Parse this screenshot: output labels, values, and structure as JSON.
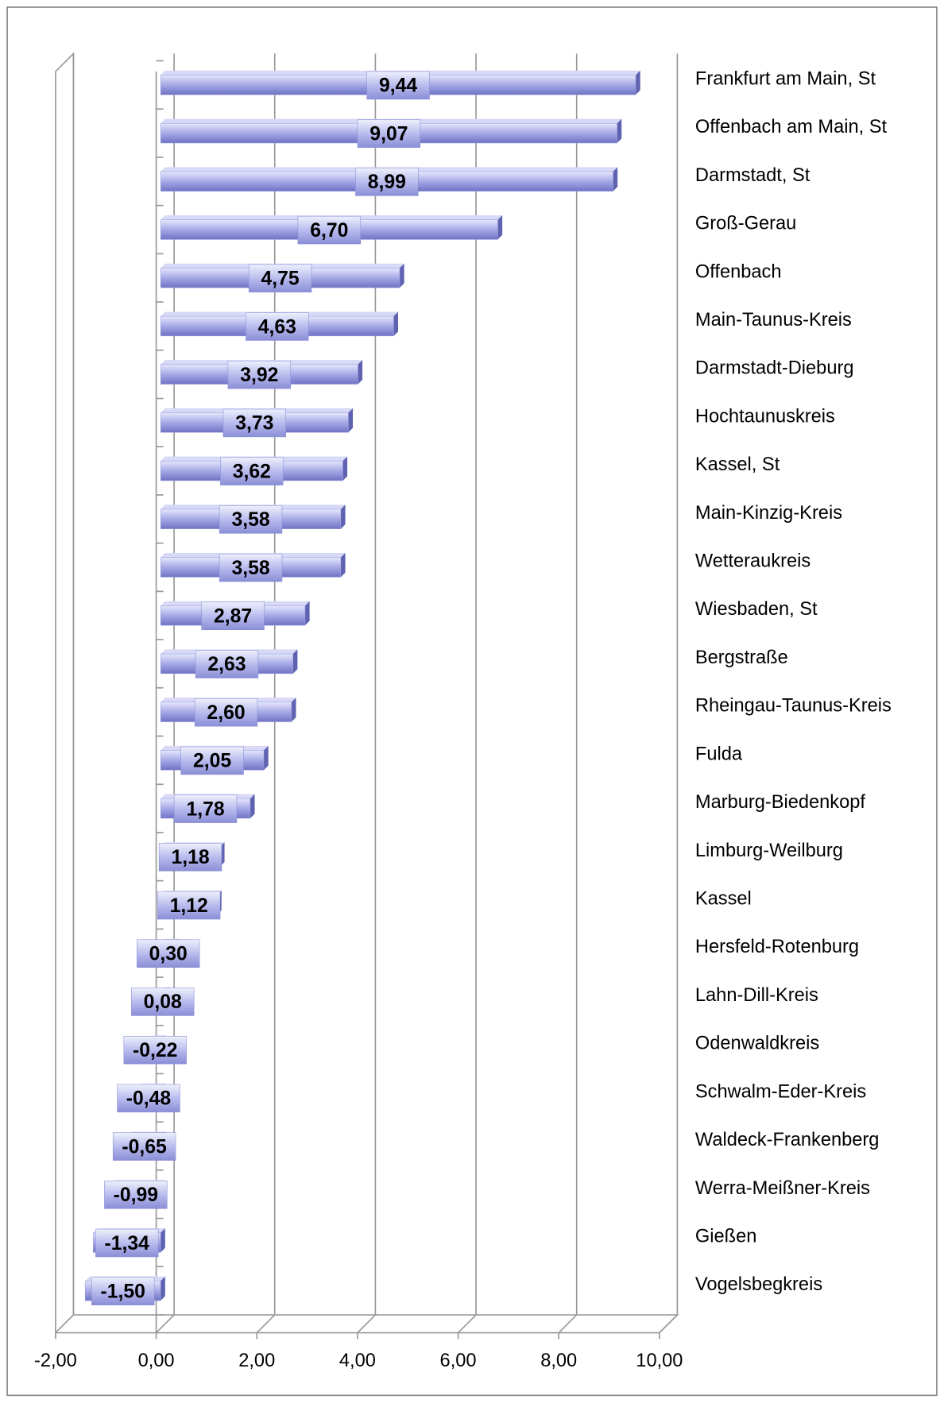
{
  "chart_data": {
    "type": "bar",
    "orientation": "horizontal",
    "categories": [
      "Frankfurt am Main, St",
      "Offenbach am Main, St",
      "Darmstadt, St",
      "Groß-Gerau",
      "Offenbach",
      "Main-Taunus-Kreis",
      "Darmstadt-Dieburg",
      "Hochtaunuskreis",
      "Kassel, St",
      "Main-Kinzig-Kreis",
      "Wetteraukreis",
      "Wiesbaden, St",
      "Bergstraße",
      "Rheingau-Taunus-Kreis",
      "Fulda",
      "Marburg-Biedenkopf",
      "Limburg-Weilburg",
      "Kassel",
      "Hersfeld-Rotenburg",
      "Lahn-Dill-Kreis",
      "Odenwaldkreis",
      "Schwalm-Eder-Kreis",
      "Waldeck-Frankenberg",
      "Werra-Meißner-Kreis",
      "Gießen",
      "Vogelsbegkreis"
    ],
    "values": [
      9.44,
      9.07,
      8.99,
      6.7,
      4.75,
      4.63,
      3.92,
      3.73,
      3.62,
      3.58,
      3.58,
      2.87,
      2.63,
      2.6,
      2.05,
      1.78,
      1.18,
      1.12,
      0.3,
      0.08,
      -0.22,
      -0.48,
      -0.65,
      -0.99,
      -1.34,
      -1.5
    ],
    "value_labels": [
      "9,44",
      "9,07",
      "8,99",
      "6,70",
      "4,75",
      "4,63",
      "3,92",
      "3,73",
      "3,62",
      "3,58",
      "3,58",
      "2,87",
      "2,63",
      "2,60",
      "2,05",
      "1,78",
      "1,18",
      "1,12",
      "0,30",
      "0,08",
      "-0,22",
      "-0,48",
      "-0,65",
      "-0,99",
      "-1,34",
      "-1,50"
    ],
    "color": "#9a9ee0",
    "xlim": [
      -2,
      10
    ],
    "xticks": [
      {
        "value": -2,
        "label": "-2,00"
      },
      {
        "value": 0,
        "label": "0,00"
      },
      {
        "value": 2,
        "label": "2,00"
      },
      {
        "value": 4,
        "label": "4,00"
      },
      {
        "value": 6,
        "label": "6,00"
      },
      {
        "value": 8,
        "label": "8,00"
      },
      {
        "value": 10,
        "label": "10,00"
      }
    ],
    "grid": true
  }
}
